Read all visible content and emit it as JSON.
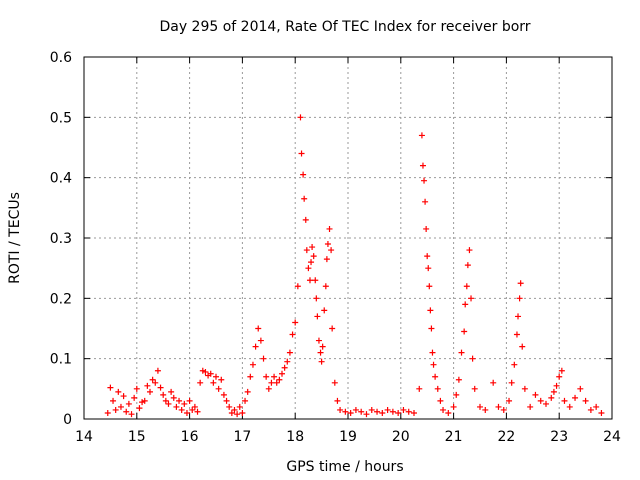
{
  "chart_data": {
    "type": "scatter",
    "title": "Day 295 of 2014, Rate Of TEC Index for receiver borr",
    "xlabel": "GPS time / hours",
    "ylabel": "ROTI / TECUs",
    "xlim": [
      14,
      24
    ],
    "ylim": [
      0,
      0.6
    ],
    "x_ticks": [
      14,
      15,
      16,
      17,
      18,
      19,
      20,
      21,
      22,
      23,
      24
    ],
    "y_ticks": [
      0,
      0.1,
      0.2,
      0.3,
      0.4,
      0.5,
      0.6
    ],
    "x_tick_labels": [
      "14",
      "15",
      "16",
      "17",
      "18",
      "19",
      "20",
      "21",
      "22",
      "23",
      "24"
    ],
    "y_tick_labels": [
      "0",
      "0.1",
      "0.2",
      "0.3",
      "0.4",
      "0.5",
      "0.6"
    ],
    "grid": true,
    "marker": "+",
    "color": "#ff0000",
    "series": [
      {
        "name": "ROTI",
        "points": [
          [
            14.45,
            0.01
          ],
          [
            14.5,
            0.052
          ],
          [
            14.55,
            0.03
          ],
          [
            14.6,
            0.015
          ],
          [
            14.65,
            0.045
          ],
          [
            14.7,
            0.02
          ],
          [
            14.75,
            0.038
          ],
          [
            14.8,
            0.012
          ],
          [
            14.85,
            0.025
          ],
          [
            14.9,
            0.008
          ],
          [
            14.95,
            0.035
          ],
          [
            15.0,
            0.05
          ],
          [
            15.05,
            0.018
          ],
          [
            15.1,
            0.028
          ],
          [
            15.15,
            0.03
          ],
          [
            15.2,
            0.055
          ],
          [
            15.25,
            0.045
          ],
          [
            15.3,
            0.065
          ],
          [
            15.35,
            0.06
          ],
          [
            15.4,
            0.08
          ],
          [
            15.45,
            0.052
          ],
          [
            15.5,
            0.04
          ],
          [
            15.55,
            0.03
          ],
          [
            15.6,
            0.025
          ],
          [
            15.65,
            0.045
          ],
          [
            15.7,
            0.035
          ],
          [
            15.75,
            0.02
          ],
          [
            15.8,
            0.03
          ],
          [
            15.85,
            0.015
          ],
          [
            15.9,
            0.025
          ],
          [
            15.95,
            0.01
          ],
          [
            16.0,
            0.03
          ],
          [
            16.05,
            0.015
          ],
          [
            16.1,
            0.02
          ],
          [
            16.15,
            0.012
          ],
          [
            16.2,
            0.06
          ],
          [
            16.25,
            0.08
          ],
          [
            16.3,
            0.078
          ],
          [
            16.35,
            0.072
          ],
          [
            16.4,
            0.075
          ],
          [
            16.45,
            0.06
          ],
          [
            16.5,
            0.07
          ],
          [
            16.55,
            0.05
          ],
          [
            16.6,
            0.065
          ],
          [
            16.65,
            0.04
          ],
          [
            16.7,
            0.03
          ],
          [
            16.75,
            0.02
          ],
          [
            16.8,
            0.01
          ],
          [
            16.85,
            0.015
          ],
          [
            16.9,
            0.008
          ],
          [
            16.95,
            0.02
          ],
          [
            17.0,
            0.01
          ],
          [
            17.05,
            0.03
          ],
          [
            17.1,
            0.045
          ],
          [
            17.15,
            0.07
          ],
          [
            17.2,
            0.09
          ],
          [
            17.25,
            0.12
          ],
          [
            17.3,
            0.15
          ],
          [
            17.35,
            0.13
          ],
          [
            17.4,
            0.1
          ],
          [
            17.45,
            0.07
          ],
          [
            17.5,
            0.05
          ],
          [
            17.55,
            0.06
          ],
          [
            17.6,
            0.07
          ],
          [
            17.65,
            0.06
          ],
          [
            17.7,
            0.065
          ],
          [
            17.75,
            0.075
          ],
          [
            17.8,
            0.085
          ],
          [
            17.85,
            0.095
          ],
          [
            17.9,
            0.11
          ],
          [
            17.95,
            0.14
          ],
          [
            18.0,
            0.16
          ],
          [
            18.05,
            0.22
          ],
          [
            18.1,
            0.5
          ],
          [
            18.12,
            0.44
          ],
          [
            18.15,
            0.405
          ],
          [
            18.17,
            0.365
          ],
          [
            18.2,
            0.33
          ],
          [
            18.22,
            0.28
          ],
          [
            18.25,
            0.25
          ],
          [
            18.28,
            0.23
          ],
          [
            18.3,
            0.26
          ],
          [
            18.32,
            0.285
          ],
          [
            18.35,
            0.27
          ],
          [
            18.38,
            0.23
          ],
          [
            18.4,
            0.2
          ],
          [
            18.42,
            0.17
          ],
          [
            18.45,
            0.13
          ],
          [
            18.48,
            0.11
          ],
          [
            18.5,
            0.095
          ],
          [
            18.52,
            0.12
          ],
          [
            18.55,
            0.18
          ],
          [
            18.58,
            0.22
          ],
          [
            18.6,
            0.265
          ],
          [
            18.62,
            0.29
          ],
          [
            18.65,
            0.315
          ],
          [
            18.68,
            0.28
          ],
          [
            18.7,
            0.15
          ],
          [
            18.75,
            0.06
          ],
          [
            18.8,
            0.03
          ],
          [
            18.85,
            0.015
          ],
          [
            18.95,
            0.012
          ],
          [
            19.05,
            0.01
          ],
          [
            19.15,
            0.015
          ],
          [
            19.25,
            0.012
          ],
          [
            19.35,
            0.008
          ],
          [
            19.45,
            0.015
          ],
          [
            19.55,
            0.012
          ],
          [
            19.65,
            0.01
          ],
          [
            19.75,
            0.015
          ],
          [
            19.85,
            0.012
          ],
          [
            19.95,
            0.01
          ],
          [
            20.05,
            0.015
          ],
          [
            20.15,
            0.012
          ],
          [
            20.25,
            0.01
          ],
          [
            20.35,
            0.05
          ],
          [
            20.4,
            0.47
          ],
          [
            20.42,
            0.42
          ],
          [
            20.44,
            0.395
          ],
          [
            20.46,
            0.36
          ],
          [
            20.48,
            0.315
          ],
          [
            20.5,
            0.27
          ],
          [
            20.52,
            0.25
          ],
          [
            20.54,
            0.22
          ],
          [
            20.56,
            0.18
          ],
          [
            20.58,
            0.15
          ],
          [
            20.6,
            0.11
          ],
          [
            20.62,
            0.09
          ],
          [
            20.65,
            0.07
          ],
          [
            20.7,
            0.05
          ],
          [
            20.75,
            0.03
          ],
          [
            20.8,
            0.015
          ],
          [
            20.9,
            0.01
          ],
          [
            21.0,
            0.02
          ],
          [
            21.05,
            0.04
          ],
          [
            21.1,
            0.065
          ],
          [
            21.15,
            0.11
          ],
          [
            21.2,
            0.145
          ],
          [
            21.22,
            0.19
          ],
          [
            21.25,
            0.22
          ],
          [
            21.27,
            0.255
          ],
          [
            21.3,
            0.28
          ],
          [
            21.33,
            0.2
          ],
          [
            21.36,
            0.1
          ],
          [
            21.4,
            0.05
          ],
          [
            21.5,
            0.02
          ],
          [
            21.6,
            0.015
          ],
          [
            21.75,
            0.06
          ],
          [
            21.85,
            0.02
          ],
          [
            21.95,
            0.015
          ],
          [
            22.05,
            0.03
          ],
          [
            22.1,
            0.06
          ],
          [
            22.15,
            0.09
          ],
          [
            22.2,
            0.14
          ],
          [
            22.22,
            0.17
          ],
          [
            22.25,
            0.2
          ],
          [
            22.27,
            0.225
          ],
          [
            22.3,
            0.12
          ],
          [
            22.35,
            0.05
          ],
          [
            22.45,
            0.02
          ],
          [
            22.55,
            0.04
          ],
          [
            22.65,
            0.03
          ],
          [
            22.75,
            0.025
          ],
          [
            22.85,
            0.035
          ],
          [
            22.9,
            0.045
          ],
          [
            22.95,
            0.055
          ],
          [
            23.0,
            0.07
          ],
          [
            23.05,
            0.08
          ],
          [
            23.1,
            0.03
          ],
          [
            23.2,
            0.02
          ],
          [
            23.3,
            0.035
          ],
          [
            23.4,
            0.05
          ],
          [
            23.5,
            0.03
          ],
          [
            23.6,
            0.015
          ],
          [
            23.7,
            0.02
          ],
          [
            23.8,
            0.01
          ]
        ]
      }
    ]
  }
}
